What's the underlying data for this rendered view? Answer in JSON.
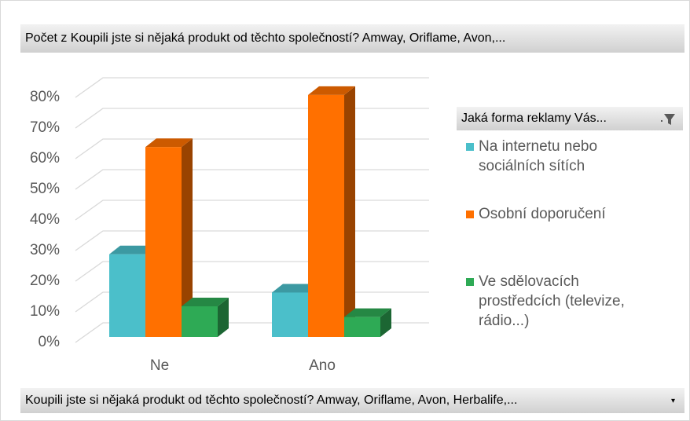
{
  "chart_data": {
    "type": "bar3d",
    "title": "Počet z Koupili jste si nějaká produkt od těchto společností? Amway, Oriflame, Avon,...",
    "legend_title": "Jaká forma reklamy Vás...",
    "axis_field": "Koupili jste si nějaká produkt od těchto společností? Amway, Oriflame, Avon, Herbalife,...",
    "categories": [
      "Ne",
      "Ano"
    ],
    "series": [
      {
        "name": "Na internetu nebo sociálních sítích",
        "color": "#4bbfca",
        "values": [
          27,
          14.5
        ]
      },
      {
        "name": "Osobní doporučení",
        "color": "#ff7000",
        "values": [
          62,
          79
        ]
      },
      {
        "name": "Ve sdělovacích prostředcích (televize, rádio...)",
        "color": "#2eaa55",
        "values": [
          10,
          6.5
        ]
      }
    ],
    "ylim": [
      0,
      80
    ],
    "yticks": [
      {
        "value": 0,
        "label": "0%"
      },
      {
        "value": 10,
        "label": "10%"
      },
      {
        "value": 20,
        "label": "20%"
      },
      {
        "value": 30,
        "label": "30%"
      },
      {
        "value": 40,
        "label": "40%"
      },
      {
        "value": 50,
        "label": "50%"
      },
      {
        "value": 60,
        "label": "60%"
      },
      {
        "value": 70,
        "label": "70%"
      },
      {
        "value": 80,
        "label": "80%"
      }
    ],
    "grid": true
  }
}
